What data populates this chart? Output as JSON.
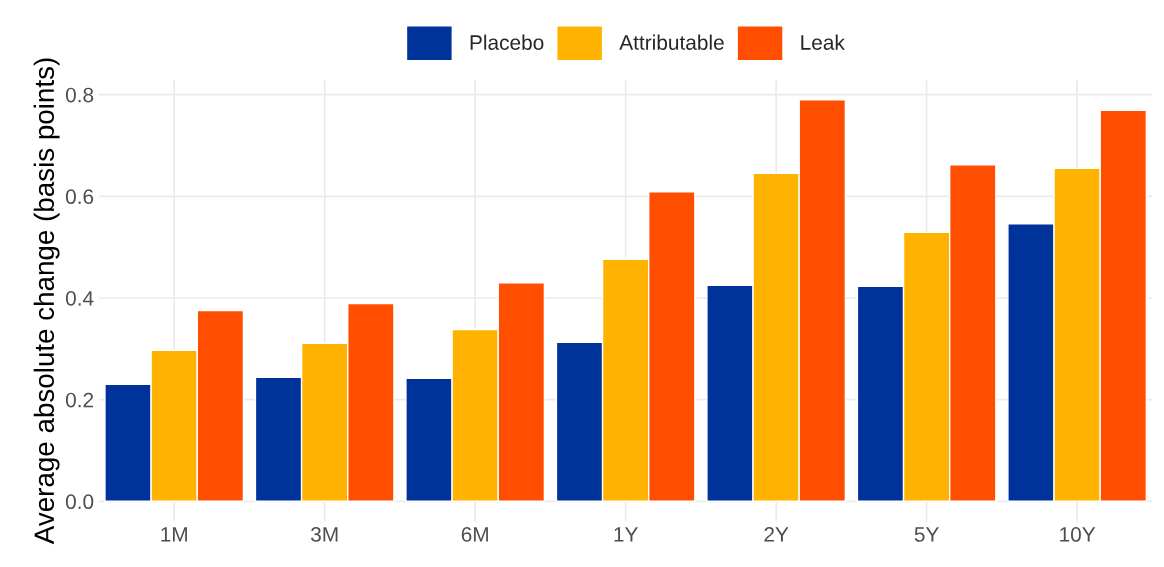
{
  "chart_data": {
    "type": "bar",
    "ylabel": "Average absolute change (basis points)",
    "categories": [
      "1M",
      "3M",
      "6M",
      "1Y",
      "2Y",
      "5Y",
      "10Y"
    ],
    "series": [
      {
        "name": "Placebo",
        "color": "#003399",
        "values": [
          0.23,
          0.244,
          0.242,
          0.313,
          0.425,
          0.423,
          0.546
        ]
      },
      {
        "name": "Attributable",
        "color": "#ffb300",
        "values": [
          0.297,
          0.311,
          0.338,
          0.476,
          0.645,
          0.529,
          0.655
        ]
      },
      {
        "name": "Leak",
        "color": "#ff4e00",
        "values": [
          0.375,
          0.389,
          0.43,
          0.609,
          0.79,
          0.662,
          0.769
        ]
      }
    ],
    "ylim": [
      -0.04,
      0.83
    ],
    "yticks": [
      {
        "value": 0,
        "label": "0.0"
      },
      0.2,
      0.4,
      0.6,
      0.8
    ],
    "grid": true,
    "legend": "top"
  }
}
